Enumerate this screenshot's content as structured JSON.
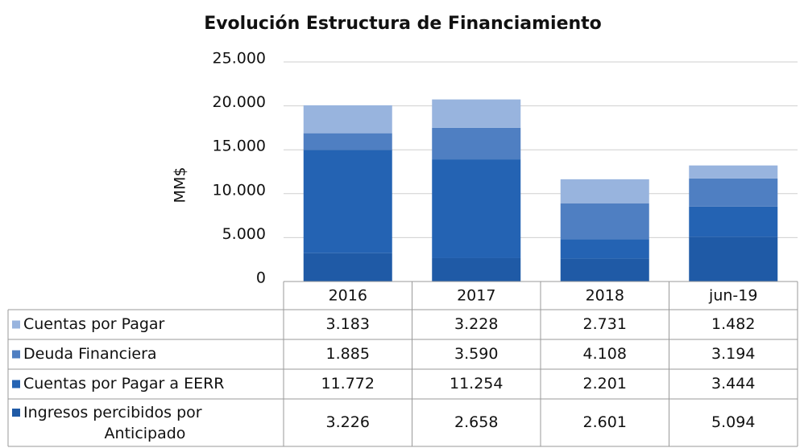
{
  "chart_data": {
    "type": "stacked_bar",
    "title": "Evolución Estructura de Financiamiento",
    "ylabel": "MM$",
    "categories": [
      "2016",
      "2017",
      "2018",
      "jun-19"
    ],
    "series": [
      {
        "name": "Cuentas por Pagar",
        "color": "#98b4de",
        "values": [
          3183,
          3228,
          2731,
          1482
        ],
        "value_labels": [
          "3.183",
          "3.228",
          "2.731",
          "1.482"
        ]
      },
      {
        "name": "Deuda Financiera",
        "color": "#4f7fc2",
        "values": [
          1885,
          3590,
          4108,
          3194
        ],
        "value_labels": [
          "1.885",
          "3.590",
          "4.108",
          "3.194"
        ]
      },
      {
        "name": "Cuentas por Pagar a EERR",
        "color": "#2463b3",
        "values": [
          11772,
          11254,
          2201,
          3444
        ],
        "value_labels": [
          "11.772",
          "11.254",
          "2.201",
          "3.444"
        ]
      },
      {
        "name": "Ingresos percibidos por Anticipado",
        "color": "#1f5aa6",
        "values": [
          3226,
          2658,
          2601,
          5094
        ],
        "value_labels": [
          "3.226",
          "2.658",
          "2.601",
          "5.094"
        ]
      }
    ],
    "ylim": [
      0,
      25000
    ],
    "yticks": [
      0,
      {
        "value": 5000,
        "label": "5.000"
      },
      {
        "value": 10000,
        "label": "10.000"
      },
      {
        "value": 15000,
        "label": "15.000"
      },
      {
        "value": 20000,
        "label": "20.000"
      },
      {
        "value": 25000,
        "label": "25.000"
      }
    ],
    "grid": true
  }
}
